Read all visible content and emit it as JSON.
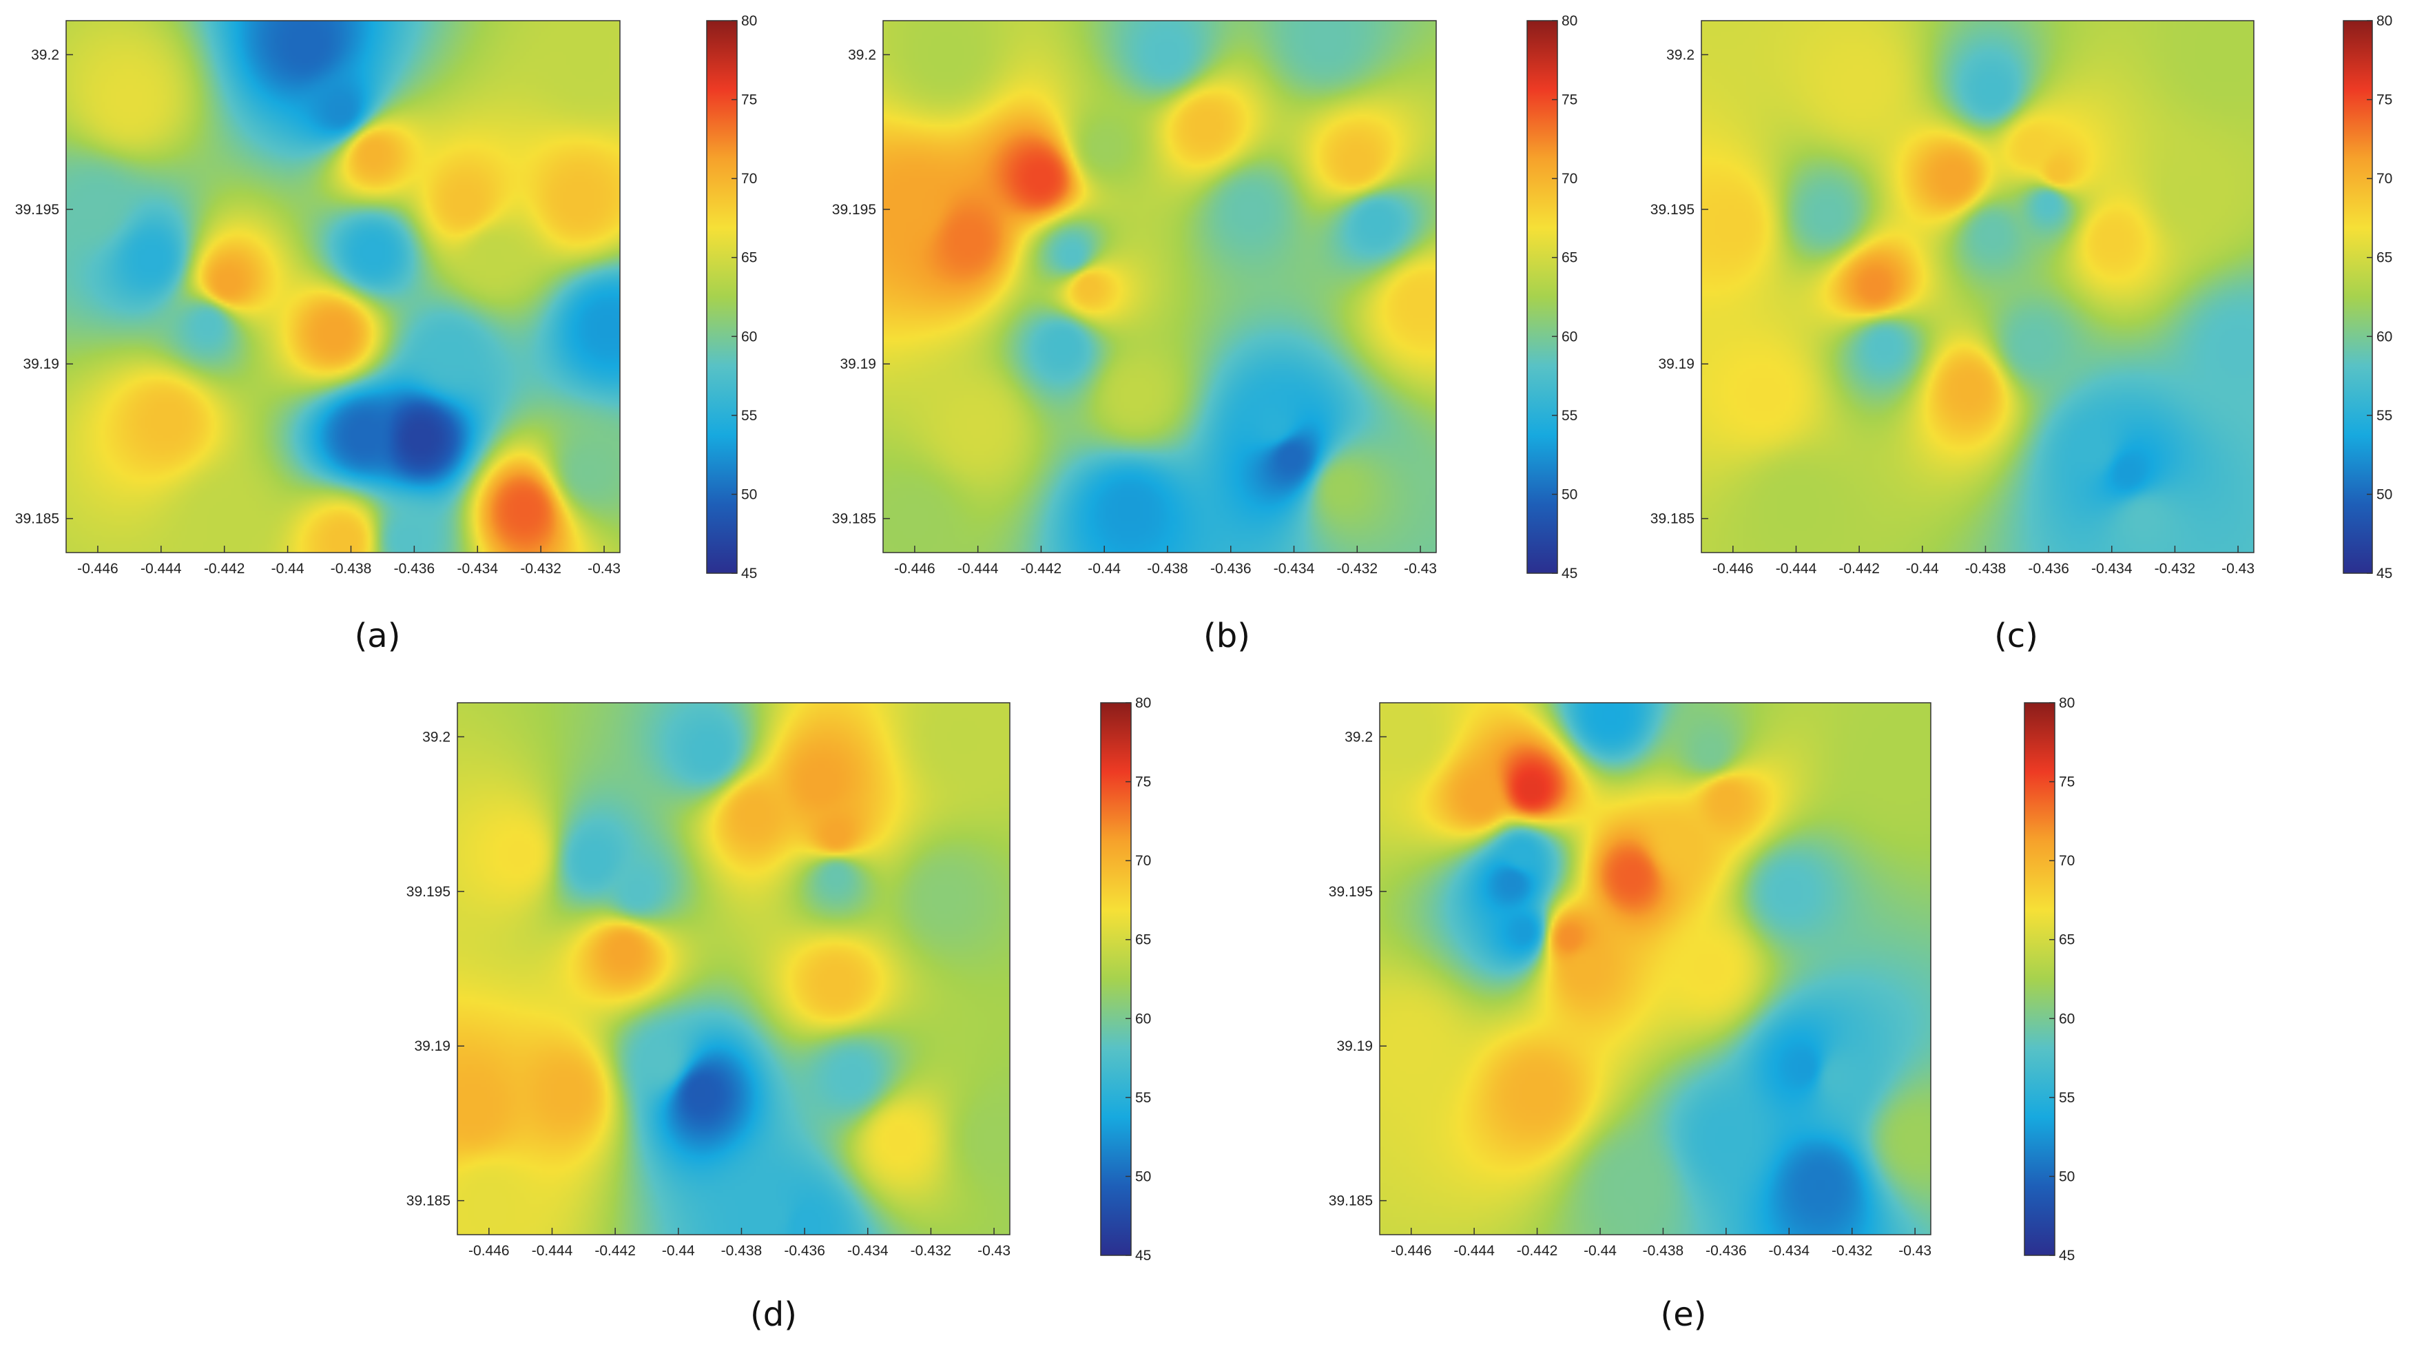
{
  "figure": {
    "colorbar": {
      "min": 45,
      "max": 80,
      "ticks": [
        45,
        50,
        55,
        60,
        65,
        70,
        75,
        80
      ],
      "colormap": [
        "#2b2f8f",
        "#1e5fb8",
        "#17a9df",
        "#58c2c6",
        "#a6d24e",
        "#f6e037",
        "#f6a22b",
        "#ee3b24",
        "#8b1d1a"
      ]
    }
  },
  "chart_data": [
    {
      "type": "heatmap",
      "caption": "(a)",
      "x_ticks": [
        "-0.446",
        "-0.444",
        "-0.442",
        "-0.44",
        "-0.438",
        "-0.436",
        "-0.434",
        "-0.432",
        "-0.43"
      ],
      "y_ticks": [
        "39.2",
        "39.195",
        "39.19",
        "39.185"
      ],
      "xlim": [
        -0.447,
        -0.4295
      ],
      "ylim": [
        39.1839,
        39.2011
      ],
      "points": [
        {
          "x": -0.4394,
          "y": 39.2003,
          "v": 50
        },
        {
          "x": -0.4383,
          "y": 39.1982,
          "v": 52
        },
        {
          "x": -0.4373,
          "y": 39.1968,
          "v": 70
        },
        {
          "x": -0.4344,
          "y": 39.1952,
          "v": 69
        },
        {
          "x": -0.4308,
          "y": 39.1953,
          "v": 69
        },
        {
          "x": -0.4335,
          "y": 39.1935,
          "v": 64
        },
        {
          "x": -0.4443,
          "y": 39.1934,
          "v": 55
        },
        {
          "x": -0.4373,
          "y": 39.1936,
          "v": 55
        },
        {
          "x": -0.4419,
          "y": 39.1926,
          "v": 71
        },
        {
          "x": -0.4385,
          "y": 39.191,
          "v": 71
        },
        {
          "x": -0.4425,
          "y": 39.1913,
          "v": 58
        },
        {
          "x": -0.4349,
          "y": 39.1903,
          "v": 57
        },
        {
          "x": -0.4299,
          "y": 39.1912,
          "v": 53
        },
        {
          "x": -0.4438,
          "y": 39.1882,
          "v": 69
        },
        {
          "x": -0.4376,
          "y": 39.1877,
          "v": 50
        },
        {
          "x": -0.4358,
          "y": 39.1876,
          "v": 47
        },
        {
          "x": -0.4325,
          "y": 39.1853,
          "v": 74
        },
        {
          "x": -0.4382,
          "y": 39.1843,
          "v": 69
        },
        {
          "x": -0.4362,
          "y": 39.1843,
          "v": 58
        },
        {
          "x": -0.446,
          "y": 39.195,
          "v": 59
        },
        {
          "x": -0.445,
          "y": 39.1985,
          "v": 66
        },
        {
          "x": -0.4305,
          "y": 39.1997,
          "v": 64
        },
        {
          "x": -0.4305,
          "y": 39.1865,
          "v": 60
        },
        {
          "x": -0.442,
          "y": 39.185,
          "v": 64
        }
      ]
    },
    {
      "type": "heatmap",
      "caption": "(b)",
      "x_ticks": [
        "-0.446",
        "-0.444",
        "-0.442",
        "-0.44",
        "-0.438",
        "-0.436",
        "-0.434",
        "-0.432",
        "-0.43"
      ],
      "y_ticks": [
        "39.2",
        "39.195",
        "39.19",
        "39.185"
      ],
      "xlim": [
        -0.447,
        -0.4295
      ],
      "ylim": [
        39.1839,
        39.2011
      ],
      "points": [
        {
          "x": -0.438,
          "y": 39.2,
          "v": 58
        },
        {
          "x": -0.433,
          "y": 39.2005,
          "v": 59
        },
        {
          "x": -0.445,
          "y": 39.2,
          "v": 63
        },
        {
          "x": -0.442,
          "y": 39.196,
          "v": 75
        },
        {
          "x": -0.4443,
          "y": 39.194,
          "v": 73
        },
        {
          "x": -0.446,
          "y": 39.195,
          "v": 71
        },
        {
          "x": -0.441,
          "y": 39.1935,
          "v": 58
        },
        {
          "x": -0.44,
          "y": 39.197,
          "v": 62
        },
        {
          "x": -0.4368,
          "y": 39.1977,
          "v": 69
        },
        {
          "x": -0.432,
          "y": 39.1965,
          "v": 69
        },
        {
          "x": -0.4354,
          "y": 39.195,
          "v": 59
        },
        {
          "x": -0.4314,
          "y": 39.1946,
          "v": 57
        },
        {
          "x": -0.4405,
          "y": 39.1925,
          "v": 69
        },
        {
          "x": -0.4413,
          "y": 39.1906,
          "v": 57
        },
        {
          "x": -0.43,
          "y": 39.192,
          "v": 68
        },
        {
          "x": -0.4346,
          "y": 39.188,
          "v": 55
        },
        {
          "x": -0.4341,
          "y": 39.187,
          "v": 50
        },
        {
          "x": -0.4392,
          "y": 39.1853,
          "v": 53
        },
        {
          "x": -0.4325,
          "y": 39.186,
          "v": 62
        },
        {
          "x": -0.444,
          "y": 39.188,
          "v": 65
        },
        {
          "x": -0.446,
          "y": 39.185,
          "v": 62
        },
        {
          "x": -0.439,
          "y": 39.189,
          "v": 64
        }
      ]
    },
    {
      "type": "heatmap",
      "caption": "(c)",
      "x_ticks": [
        "-0.446",
        "-0.444",
        "-0.442",
        "-0.44",
        "-0.438",
        "-0.436",
        "-0.434",
        "-0.432",
        "-0.43"
      ],
      "y_ticks": [
        "39.2",
        "39.195",
        "39.19",
        "39.185"
      ],
      "xlim": [
        -0.447,
        -0.4295
      ],
      "ylim": [
        39.1839,
        39.2011
      ],
      "points": [
        {
          "x": -0.4378,
          "y": 39.1988,
          "v": 57
        },
        {
          "x": -0.442,
          "y": 39.199,
          "v": 66
        },
        {
          "x": -0.4365,
          "y": 39.197,
          "v": 68
        },
        {
          "x": -0.439,
          "y": 39.196,
          "v": 71
        },
        {
          "x": -0.4357,
          "y": 39.1962,
          "v": 69
        },
        {
          "x": -0.4315,
          "y": 39.1955,
          "v": 64
        },
        {
          "x": -0.443,
          "y": 39.1948,
          "v": 59
        },
        {
          "x": -0.4378,
          "y": 39.1942,
          "v": 59
        },
        {
          "x": -0.436,
          "y": 39.1952,
          "v": 58
        },
        {
          "x": -0.434,
          "y": 39.194,
          "v": 68
        },
        {
          "x": -0.446,
          "y": 39.1945,
          "v": 68
        },
        {
          "x": -0.4415,
          "y": 39.1925,
          "v": 72
        },
        {
          "x": -0.4412,
          "y": 39.1906,
          "v": 58
        },
        {
          "x": -0.4365,
          "y": 39.1906,
          "v": 59
        },
        {
          "x": -0.4385,
          "y": 39.1892,
          "v": 70
        },
        {
          "x": -0.43,
          "y": 39.1905,
          "v": 58
        },
        {
          "x": -0.4345,
          "y": 39.1872,
          "v": 56
        },
        {
          "x": -0.4335,
          "y": 39.1865,
          "v": 53
        },
        {
          "x": -0.433,
          "y": 39.185,
          "v": 58
        },
        {
          "x": -0.445,
          "y": 39.189,
          "v": 67
        },
        {
          "x": -0.444,
          "y": 39.1855,
          "v": 63
        },
        {
          "x": -0.4305,
          "y": 39.2,
          "v": 63
        }
      ]
    },
    {
      "type": "heatmap",
      "caption": "(d)",
      "x_ticks": [
        "-0.446",
        "-0.444",
        "-0.442",
        "-0.44",
        "-0.438",
        "-0.436",
        "-0.434",
        "-0.432",
        "-0.43"
      ],
      "y_ticks": [
        "39.2",
        "39.195",
        "39.19",
        "39.185"
      ],
      "xlim": [
        -0.447,
        -0.4295
      ],
      "ylim": [
        39.1839,
        39.2011
      ],
      "points": [
        {
          "x": -0.439,
          "y": 39.1995,
          "v": 57
        },
        {
          "x": -0.4376,
          "y": 39.1975,
          "v": 70
        },
        {
          "x": -0.4355,
          "y": 39.1985,
          "v": 71
        },
        {
          "x": -0.435,
          "y": 39.1968,
          "v": 71
        },
        {
          "x": -0.4427,
          "y": 39.196,
          "v": 57
        },
        {
          "x": -0.4413,
          "y": 39.195,
          "v": 58
        },
        {
          "x": -0.445,
          "y": 39.1962,
          "v": 67
        },
        {
          "x": -0.435,
          "y": 39.1955,
          "v": 59
        },
        {
          "x": -0.4316,
          "y": 39.1948,
          "v": 61
        },
        {
          "x": -0.4417,
          "y": 39.1931,
          "v": 71
        },
        {
          "x": -0.435,
          "y": 39.192,
          "v": 69
        },
        {
          "x": -0.4393,
          "y": 39.1885,
          "v": 49
        },
        {
          "x": -0.4405,
          "y": 39.1895,
          "v": 58
        },
        {
          "x": -0.4435,
          "y": 39.1885,
          "v": 70
        },
        {
          "x": -0.4465,
          "y": 39.188,
          "v": 70
        },
        {
          "x": -0.4345,
          "y": 39.189,
          "v": 58
        },
        {
          "x": -0.433,
          "y": 39.187,
          "v": 67
        },
        {
          "x": -0.437,
          "y": 39.1845,
          "v": 56
        },
        {
          "x": -0.436,
          "y": 39.1842,
          "v": 55
        },
        {
          "x": -0.43,
          "y": 39.187,
          "v": 62
        },
        {
          "x": -0.431,
          "y": 39.2,
          "v": 64
        },
        {
          "x": -0.446,
          "y": 39.185,
          "v": 66
        }
      ]
    },
    {
      "type": "heatmap",
      "caption": "(e)",
      "x_ticks": [
        "-0.446",
        "-0.444",
        "-0.442",
        "-0.44",
        "-0.438",
        "-0.436",
        "-0.434",
        "-0.432",
        "-0.43"
      ],
      "y_ticks": [
        "39.2",
        "39.195",
        "39.19",
        "39.185"
      ],
      "xlim": [
        -0.447,
        -0.4295
      ],
      "ylim": [
        39.1839,
        39.2011
      ],
      "points": [
        {
          "x": -0.4397,
          "y": 39.2007,
          "v": 54
        },
        {
          "x": -0.4365,
          "y": 39.1995,
          "v": 60
        },
        {
          "x": -0.4422,
          "y": 39.1983,
          "v": 76
        },
        {
          "x": -0.4438,
          "y": 39.198,
          "v": 71
        },
        {
          "x": -0.436,
          "y": 39.198,
          "v": 70
        },
        {
          "x": -0.439,
          "y": 39.1955,
          "v": 74
        },
        {
          "x": -0.4375,
          "y": 39.1965,
          "v": 69
        },
        {
          "x": -0.4425,
          "y": 39.1962,
          "v": 55
        },
        {
          "x": -0.4428,
          "y": 39.1953,
          "v": 52
        },
        {
          "x": -0.4424,
          "y": 39.1937,
          "v": 53
        },
        {
          "x": -0.441,
          "y": 39.1935,
          "v": 72
        },
        {
          "x": -0.4405,
          "y": 39.1925,
          "v": 70
        },
        {
          "x": -0.434,
          "y": 39.195,
          "v": 58
        },
        {
          "x": -0.4365,
          "y": 39.1925,
          "v": 67
        },
        {
          "x": -0.442,
          "y": 39.1885,
          "v": 70
        },
        {
          "x": -0.4335,
          "y": 39.1893,
          "v": 53
        },
        {
          "x": -0.4325,
          "y": 39.189,
          "v": 57
        },
        {
          "x": -0.436,
          "y": 39.187,
          "v": 56
        },
        {
          "x": -0.433,
          "y": 39.1855,
          "v": 51
        },
        {
          "x": -0.439,
          "y": 39.1855,
          "v": 60
        },
        {
          "x": -0.43,
          "y": 39.187,
          "v": 62
        },
        {
          "x": -0.446,
          "y": 39.19,
          "v": 66
        },
        {
          "x": -0.446,
          "y": 39.2,
          "v": 65
        },
        {
          "x": -0.4305,
          "y": 39.199,
          "v": 63
        }
      ]
    }
  ]
}
